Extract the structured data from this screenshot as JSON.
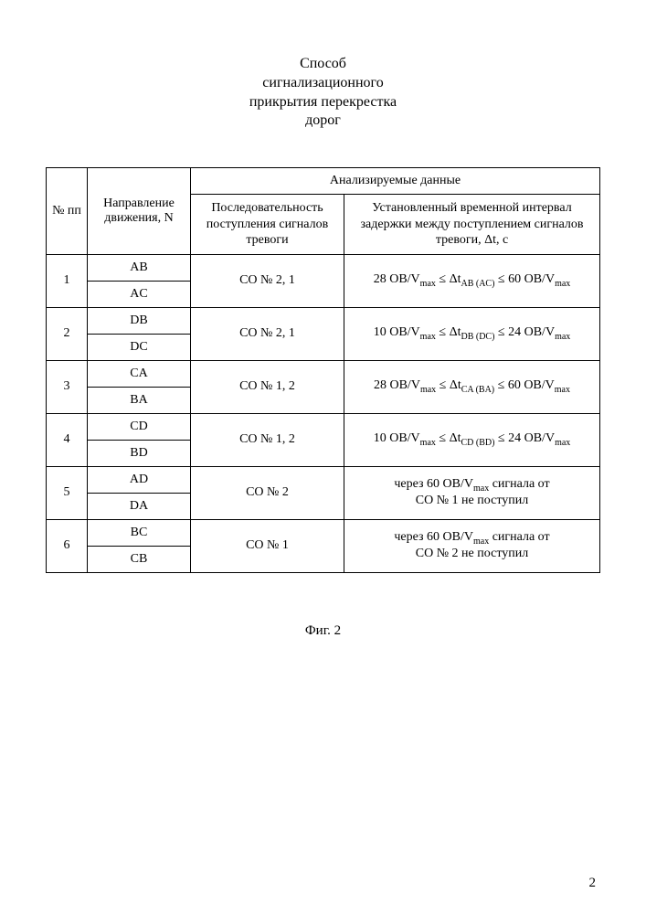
{
  "title": {
    "line1": "Способ",
    "line2": "сигнализационного",
    "line3": "прикрытия перекрестка",
    "line4": "дорог"
  },
  "headers": {
    "col_num": "№ пп",
    "col_dir": "Направление движения, N",
    "col_analyzed": "Анализируемые данные",
    "col_seq": "Последовательность поступления сигналов тревоги",
    "col_interval": "Установленный временной интервал задержки между поступлением сигналов тревоги, Δt, с"
  },
  "rows": [
    {
      "num": "1",
      "dir1": "AB",
      "dir2": "AC",
      "seq": "СО № 2, 1",
      "int_pre": "28 OB/V",
      "int_sub1": "max",
      "int_mid1": " ≤ Δt",
      "int_sub2": "AB (AC)",
      "int_mid2": " ≤ 60 OB/V",
      "int_sub3": "max",
      "int_end": ""
    },
    {
      "num": "2",
      "dir1": "DB",
      "dir2": "DC",
      "seq": "СО № 2, 1",
      "int_pre": "10 OB/V",
      "int_sub1": "max",
      "int_mid1": " ≤ Δt",
      "int_sub2": "DB (DC)",
      "int_mid2": " ≤ 24 OB/V",
      "int_sub3": "max",
      "int_end": ""
    },
    {
      "num": "3",
      "dir1": "CA",
      "dir2": "BA",
      "seq": "СО № 1, 2",
      "int_pre": "28 OB/V",
      "int_sub1": "max",
      "int_mid1": " ≤ Δt",
      "int_sub2": "CA (BA)",
      "int_mid2": " ≤ 60 OB/V",
      "int_sub3": "max",
      "int_end": ""
    },
    {
      "num": "4",
      "dir1": "CD",
      "dir2": "BD",
      "seq": "СО № 1, 2",
      "int_pre": "10 OB/V",
      "int_sub1": "max",
      "int_mid1": " ≤ Δt",
      "int_sub2": "CD (BD)",
      "int_mid2": " ≤ 24 OB/V",
      "int_sub3": "max",
      "int_end": ""
    },
    {
      "num": "5",
      "dir1": "AD",
      "dir2": "DA",
      "seq": "СО № 2",
      "int_pre": "через 60 OB/V",
      "int_sub1": "max",
      "int_mid1": " сигнала от",
      "int_sub2": "",
      "int_mid2": "",
      "int_sub3": "",
      "int_end": "СО № 1 не поступил"
    },
    {
      "num": "6",
      "dir1": "BC",
      "dir2": "CB",
      "seq": "СО № 1",
      "int_pre": "через 60 OB/V",
      "int_sub1": "max",
      "int_mid1": " сигнала от",
      "int_sub2": "",
      "int_mid2": "",
      "int_sub3": "",
      "int_end": "СО № 2 не поступил"
    }
  ],
  "figcaption": "Фиг. 2",
  "pagenum": "2"
}
